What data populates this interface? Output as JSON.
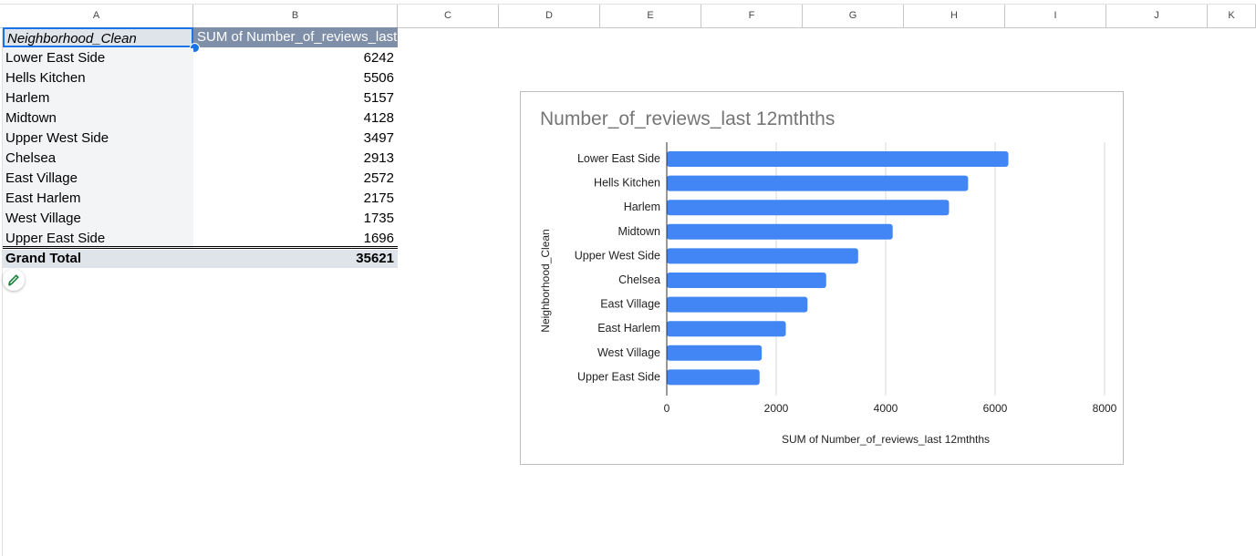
{
  "columns": [
    "A",
    "B",
    "C",
    "D",
    "E",
    "F",
    "G",
    "H",
    "I",
    "J",
    "K"
  ],
  "pivot": {
    "header_a": "Neighborhood_Clean",
    "header_b": "SUM of Number_of_reviews_last",
    "rows": [
      {
        "name": "Lower East Side",
        "value": "6242"
      },
      {
        "name": "Hells Kitchen",
        "value": "5506"
      },
      {
        "name": "Harlem",
        "value": "5157"
      },
      {
        "name": "Midtown",
        "value": "4128"
      },
      {
        "name": "Upper West Side",
        "value": "3497"
      },
      {
        "name": "Chelsea",
        "value": "2913"
      },
      {
        "name": "East Village",
        "value": "2572"
      },
      {
        "name": "East Harlem",
        "value": "2175"
      },
      {
        "name": "West Village",
        "value": "1735"
      },
      {
        "name": "Upper East Side",
        "value": "1696"
      }
    ],
    "total_label": "Grand Total",
    "total_value": "35621"
  },
  "edit_icon": "pencil-icon",
  "chart_data": {
    "type": "bar",
    "orientation": "horizontal",
    "title": "Number_of_reviews_last 12mthths",
    "xlabel": "SUM of Number_of_reviews_last 12mthths",
    "ylabel": "Neighborhood_Clean",
    "categories": [
      "Lower East Side",
      "Hells Kitchen",
      "Harlem",
      "Midtown",
      "Upper West Side",
      "Chelsea",
      "East Village",
      "East Harlem",
      "West Village",
      "Upper East Side"
    ],
    "values": [
      6242,
      5506,
      5157,
      4128,
      3497,
      2913,
      2572,
      2175,
      1735,
      1696
    ],
    "xlim": [
      0,
      8000
    ],
    "xticks": [
      0,
      2000,
      4000,
      6000,
      8000
    ],
    "grid": true,
    "legend": "none",
    "bar_color": "#4285f4"
  }
}
